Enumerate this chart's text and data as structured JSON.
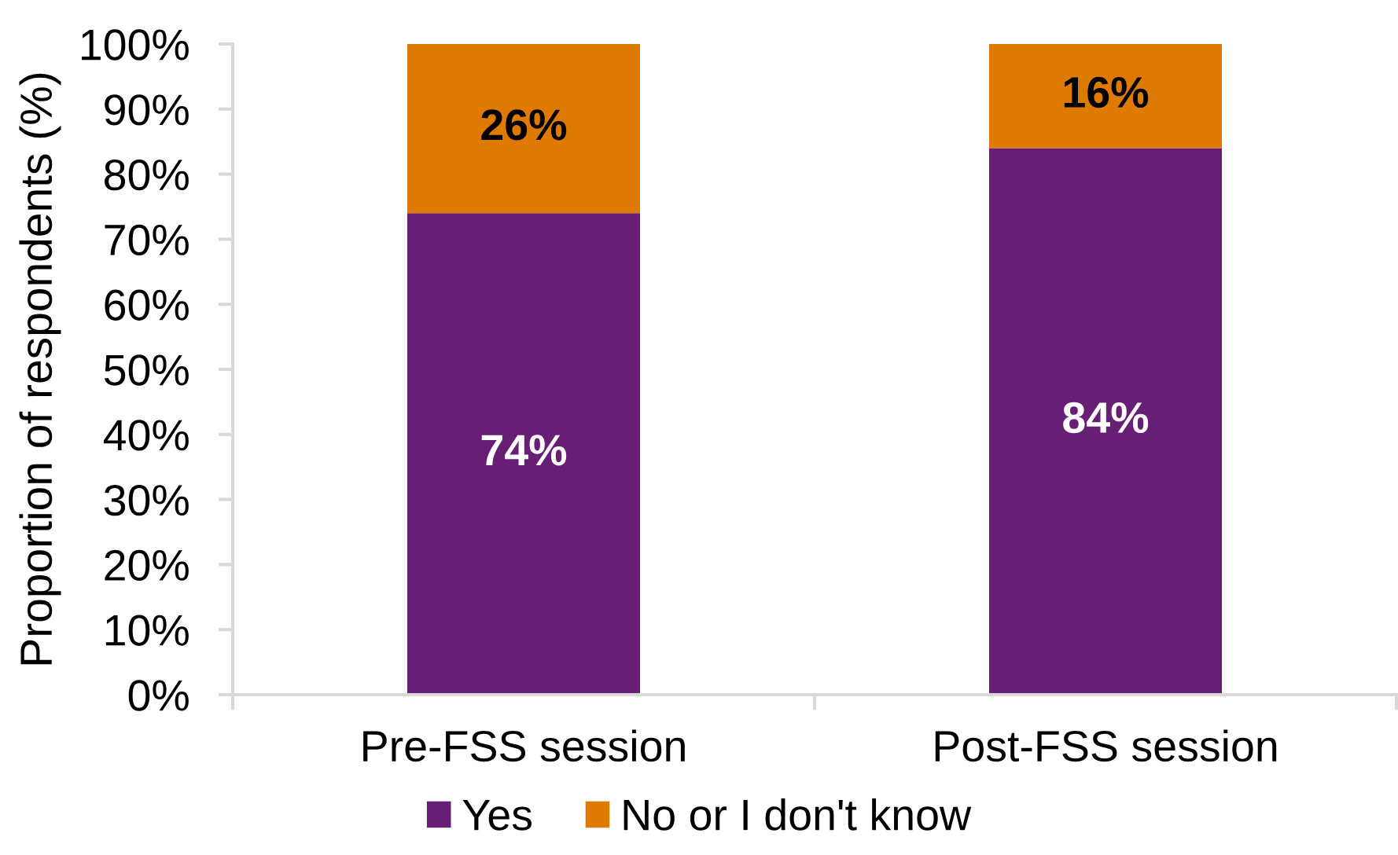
{
  "chart_data": {
    "type": "bar",
    "stacked": true,
    "ylabel": "Proportion of respondents (%)",
    "categories": [
      "Pre-FSS session",
      "Post-FSS session"
    ],
    "series": [
      {
        "name": "Yes",
        "color": "#671e75",
        "values": [
          74,
          84
        ],
        "value_labels": [
          "74%",
          "84%"
        ]
      },
      {
        "name": "No or I don't know",
        "color": "#de7a00",
        "values": [
          26,
          16
        ],
        "value_labels": [
          "26%",
          "16%"
        ]
      }
    ],
    "ylim": [
      0,
      100
    ],
    "yticks": [
      {
        "value": 0,
        "label": "0%"
      },
      {
        "value": 10,
        "label": "10%"
      },
      {
        "value": 20,
        "label": "20%"
      },
      {
        "value": 30,
        "label": "30%"
      },
      {
        "value": 40,
        "label": "40%"
      },
      {
        "value": 50,
        "label": "50%"
      },
      {
        "value": 60,
        "label": "60%"
      },
      {
        "value": 70,
        "label": "70%"
      },
      {
        "value": 80,
        "label": "80%"
      },
      {
        "value": 90,
        "label": "90%"
      },
      {
        "value": 100,
        "label": "100%"
      }
    ],
    "grid": false,
    "legend": "bottom"
  }
}
